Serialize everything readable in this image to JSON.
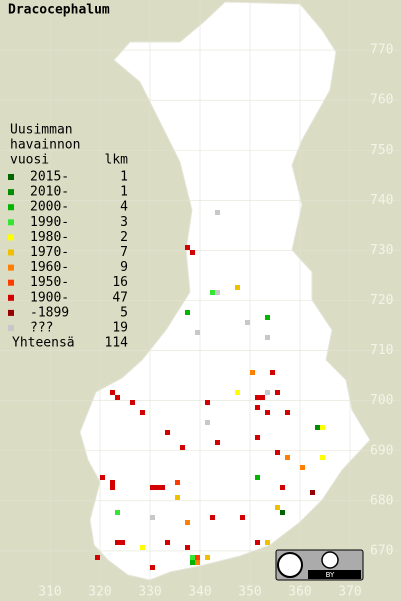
{
  "title": "Dracocephalum",
  "legend": {
    "header": [
      "Uusimman",
      "havainnon",
      "vuosi"
    ],
    "count_header": "lkm",
    "rows": [
      {
        "label": "2015-",
        "count": 1,
        "color": "#006400"
      },
      {
        "label": "2010-",
        "count": 1,
        "color": "#008c00"
      },
      {
        "label": "2000-",
        "count": 4,
        "color": "#00b400"
      },
      {
        "label": "1990-",
        "count": 3,
        "color": "#33e633"
      },
      {
        "label": "1980-",
        "count": 2,
        "color": "#ffff00"
      },
      {
        "label": "1970-",
        "count": 7,
        "color": "#f0c000"
      },
      {
        "label": "1960-",
        "count": 9,
        "color": "#ff8000"
      },
      {
        "label": "1950-",
        "count": 16,
        "color": "#ff3c00"
      },
      {
        "label": "1900-",
        "count": 47,
        "color": "#d20000"
      },
      {
        "label": "-1899",
        "count": 5,
        "color": "#960000"
      },
      {
        "label": "???",
        "count": 19,
        "color": "#c8c8c8"
      }
    ],
    "total_label": "Yhteensä",
    "total": 114
  },
  "ylim": [
    660,
    780
  ],
  "yticks": [
    770,
    760,
    750,
    740,
    730,
    720,
    710,
    700,
    690,
    680,
    670
  ],
  "xlim": [
    300,
    380
  ],
  "xticks": [
    310,
    320,
    330,
    340,
    350,
    360,
    370
  ],
  "license": "BY"
}
